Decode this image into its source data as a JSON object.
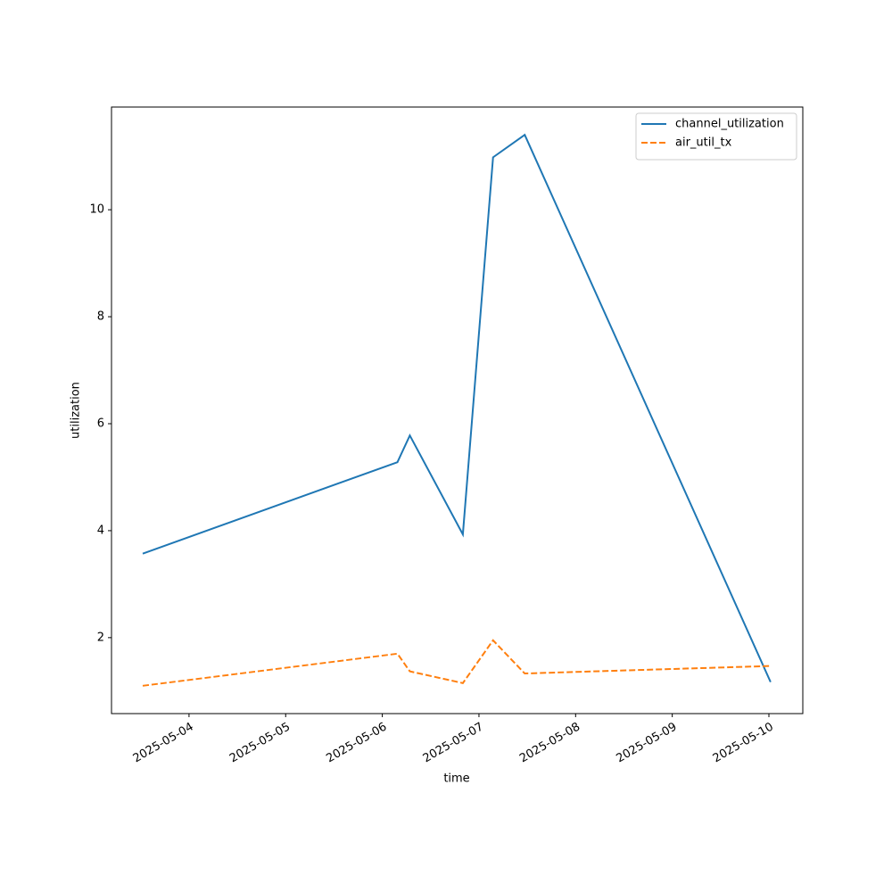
{
  "chart_data": {
    "type": "line",
    "x_label": "time",
    "y_label": "utilization",
    "x": [
      "2025-05-03T12:30",
      "2025-05-06T03:45",
      "2025-05-06T06:50",
      "2025-05-06T20:00",
      "2025-05-07T03:30",
      "2025-05-07T11:22",
      "2025-05-10T00:25"
    ],
    "series": [
      {
        "name": "channel_utilization",
        "color": "#1f77b4",
        "dash": "solid",
        "values": [
          3.57,
          5.28,
          5.78,
          3.93,
          10.98,
          11.4,
          1.17
        ]
      },
      {
        "name": "air_util_tx",
        "color": "#ff7f0e",
        "dash": "dashed",
        "values": [
          1.1,
          1.7,
          1.37,
          1.15,
          1.95,
          1.33,
          1.47
        ]
      }
    ],
    "xlim": [
      "2025-05-03T04:45",
      "2025-05-10T08:25"
    ],
    "xticks": [
      "2025-05-04",
      "2025-05-05",
      "2025-05-06",
      "2025-05-07",
      "2025-05-08",
      "2025-05-09",
      "2025-05-10"
    ],
    "ylim": [
      0.58,
      11.92
    ],
    "yticks": [
      2,
      4,
      6,
      8,
      10
    ],
    "legend": "upper right"
  }
}
